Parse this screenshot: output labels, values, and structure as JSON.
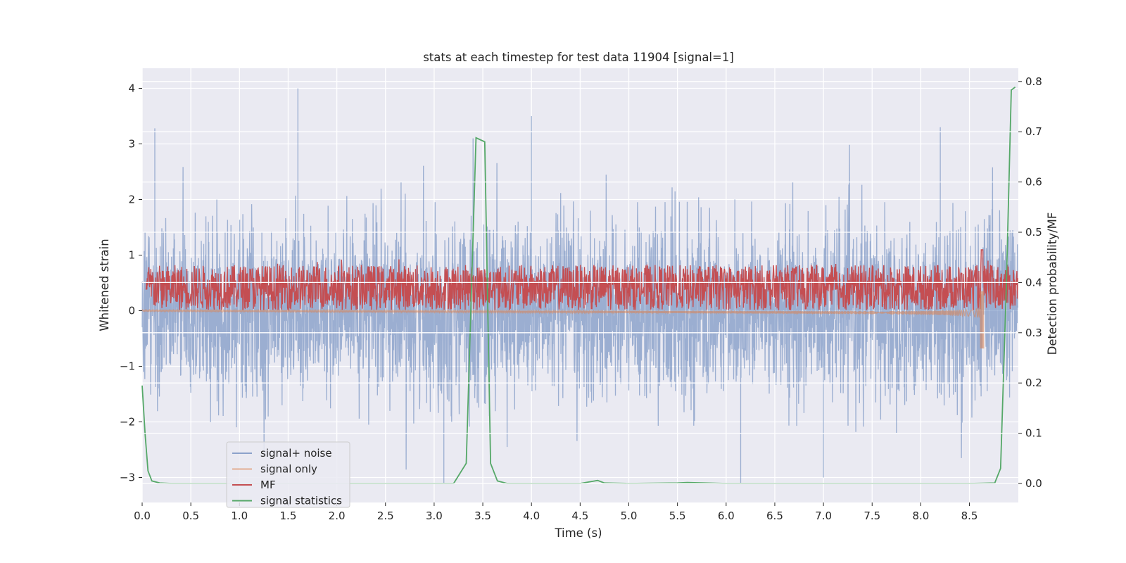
{
  "chart_data": {
    "type": "line",
    "title": "stats at each timestep for test data 11904 [signal=1]",
    "xlabel": "Time (s)",
    "ylabel_left": "Whitened strain",
    "ylabel_right": "Detection probability/MF",
    "xlim": [
      0.0,
      9.0
    ],
    "ylim_left": [
      -3.4,
      4.3
    ],
    "ylim_right": [
      -0.04,
      0.82
    ],
    "x_ticks": [
      0.0,
      0.5,
      1.0,
      1.5,
      2.0,
      2.5,
      3.0,
      3.5,
      4.0,
      4.5,
      5.0,
      5.5,
      6.0,
      6.5,
      7.0,
      7.5,
      8.0,
      8.5
    ],
    "x_tick_labels": [
      "0.0",
      "0.5",
      "1.0",
      "1.5",
      "2.0",
      "2.5",
      "3.0",
      "3.5",
      "4.0",
      "4.5",
      "5.0",
      "5.5",
      "6.0",
      "6.5",
      "7.0",
      "7.5",
      "8.0",
      "8.5"
    ],
    "y_left_ticks": [
      4,
      3,
      2,
      1,
      0,
      -1,
      -2,
      -3
    ],
    "y_left_tick_labels": [
      "4",
      "3",
      "2",
      "1",
      "0",
      "−1",
      "−2",
      "−3"
    ],
    "y_right_ticks": [
      0.8,
      0.7,
      0.6,
      0.5,
      0.4,
      0.3,
      0.2,
      0.1,
      0.0
    ],
    "y_right_tick_labels": [
      "0.8",
      "0.7",
      "0.6",
      "0.5",
      "0.4",
      "0.3",
      "0.2",
      "0.1",
      "0.0"
    ],
    "grid": true,
    "legend_position": "lower-left",
    "series": [
      {
        "name": "signal+ noise",
        "axis": "left",
        "style": "dense-noise",
        "color": "#4c72b0",
        "description_range": [
          -3.1,
          4.0
        ],
        "sigma": 0.78,
        "peaks": [
          [
            1.6,
            4.0
          ],
          [
            0.13,
            3.28
          ],
          [
            4.0,
            3.5
          ],
          [
            3.4,
            3.1
          ],
          [
            8.2,
            3.3
          ],
          [
            3.1,
            -3.1
          ],
          [
            6.15,
            -3.1
          ],
          [
            7.0,
            -3.0
          ]
        ]
      },
      {
        "name": "signal only",
        "axis": "left",
        "style": "chirp",
        "color": "#dd8452",
        "end_time": 8.65,
        "end_amplitude_max": 1.0,
        "end_amplitude_min": -0.68
      },
      {
        "name": "MF",
        "axis": "right",
        "style": "noise-band",
        "color": "#c44e52",
        "baseline": 0.39,
        "half_width": 0.045,
        "spike_time": 8.63,
        "spike_value": 0.465
      },
      {
        "name": "signal statistics",
        "axis": "right",
        "style": "line",
        "color": "#55a868",
        "x": [
          0.0,
          0.03,
          0.06,
          0.1,
          0.18,
          0.3,
          0.6,
          1.0,
          2.0,
          3.0,
          3.2,
          3.33,
          3.43,
          3.52,
          3.58,
          3.65,
          3.75,
          4.0,
          4.5,
          4.62,
          4.68,
          4.75,
          5.0,
          5.5,
          5.6,
          6.0,
          7.0,
          8.0,
          8.5,
          8.76,
          8.82,
          8.88,
          8.93,
          8.97
        ],
        "y": [
          0.195,
          0.1,
          0.025,
          0.005,
          0.001,
          0.0,
          0.0,
          0.0,
          0.0,
          0.0,
          0.0,
          0.04,
          0.688,
          0.68,
          0.04,
          0.005,
          0.0,
          0.0,
          0.0,
          0.004,
          0.006,
          0.001,
          0.0,
          0.001,
          0.002,
          0.0,
          0.0,
          0.0,
          0.0,
          0.001,
          0.03,
          0.4,
          0.783,
          0.789
        ]
      }
    ],
    "legend": [
      "signal+ noise",
      "signal only",
      "MF",
      "signal statistics"
    ]
  }
}
